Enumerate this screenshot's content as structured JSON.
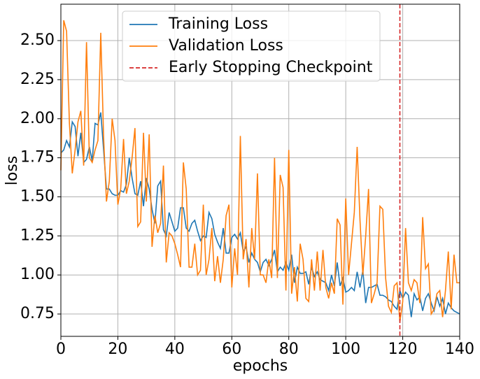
{
  "chart_data": {
    "type": "line",
    "xlabel": "epochs",
    "ylabel": "loss",
    "x": [
      0,
      1,
      2,
      3,
      4,
      5,
      6,
      7,
      8,
      9,
      10,
      11,
      12,
      13,
      14,
      15,
      16,
      17,
      18,
      19,
      20,
      21,
      22,
      23,
      24,
      25,
      26,
      27,
      28,
      29,
      30,
      31,
      32,
      33,
      34,
      35,
      36,
      37,
      38,
      39,
      40,
      41,
      42,
      43,
      44,
      45,
      46,
      47,
      48,
      49,
      50,
      51,
      52,
      53,
      54,
      55,
      56,
      57,
      58,
      59,
      60,
      61,
      62,
      63,
      64,
      65,
      66,
      67,
      68,
      69,
      70,
      71,
      72,
      73,
      74,
      75,
      76,
      77,
      78,
      79,
      80,
      81,
      82,
      83,
      84,
      85,
      86,
      87,
      88,
      89,
      90,
      91,
      92,
      93,
      94,
      95,
      96,
      97,
      98,
      99,
      100,
      101,
      102,
      103,
      104,
      105,
      106,
      107,
      108,
      109,
      110,
      111,
      112,
      113,
      114,
      115,
      116,
      117,
      118,
      119,
      120,
      121,
      122,
      123,
      124,
      125,
      126,
      127,
      128,
      129,
      130,
      131,
      132,
      133,
      134,
      135,
      136,
      137,
      138,
      139,
      140
    ],
    "series": [
      {
        "name": "Training Loss",
        "color": "#1f77b4",
        "values": [
          1.78,
          1.8,
          1.86,
          1.82,
          1.98,
          1.95,
          1.76,
          1.91,
          1.72,
          1.74,
          1.82,
          1.73,
          1.97,
          1.96,
          2.04,
          1.8,
          1.55,
          1.55,
          1.52,
          1.51,
          1.51,
          1.54,
          1.53,
          1.58,
          1.75,
          1.62,
          1.52,
          1.51,
          1.6,
          1.44,
          1.62,
          1.55,
          1.42,
          1.33,
          1.57,
          1.6,
          1.29,
          1.25,
          1.4,
          1.34,
          1.28,
          1.3,
          1.43,
          1.43,
          1.3,
          1.28,
          1.33,
          1.35,
          1.28,
          1.22,
          1.25,
          1.24,
          1.4,
          1.36,
          1.26,
          1.21,
          1.17,
          1.3,
          1.14,
          1.14,
          1.24,
          1.26,
          1.23,
          1.27,
          1.15,
          1.18,
          1.08,
          1.14,
          1.1,
          1.08,
          1.02,
          1.08,
          1.1,
          1.06,
          1.1,
          1.16,
          1.02,
          1.05,
          1.03,
          1.08,
          1.03,
          1.13,
          0.95,
          1.05,
          1.01,
          1.01,
          1.02,
          0.94,
          1.05,
          0.99,
          1.02,
          0.97,
          0.96,
          0.95,
          0.9,
          1.0,
          0.93,
          1.08,
          0.93,
          0.98,
          0.89,
          0.9,
          0.92,
          0.9,
          1.02,
          0.92,
          1.03,
          0.82,
          0.92,
          0.92,
          0.93,
          0.94,
          0.87,
          0.87,
          0.86,
          0.84,
          0.83,
          0.8,
          0.78,
          0.9,
          0.85,
          0.89,
          0.87,
          0.73,
          0.88,
          0.84,
          0.86,
          0.77,
          0.85,
          0.88,
          0.82,
          0.77,
          0.86,
          0.8,
          0.85,
          0.75,
          0.82,
          0.79,
          0.77,
          0.76,
          0.75
        ]
      },
      {
        "name": "Validation Loss",
        "color": "#ff7f0e",
        "values": [
          1.67,
          2.63,
          2.56,
          1.97,
          1.65,
          1.8,
          1.98,
          2.05,
          1.7,
          2.49,
          1.75,
          1.72,
          1.8,
          1.86,
          2.55,
          1.88,
          1.47,
          1.6,
          2.0,
          1.86,
          1.45,
          1.55,
          1.87,
          1.52,
          1.6,
          1.75,
          1.94,
          1.31,
          1.34,
          1.91,
          1.47,
          1.9,
          1.18,
          1.38,
          1.27,
          1.33,
          1.7,
          1.08,
          1.27,
          1.25,
          1.2,
          1.13,
          1.05,
          1.72,
          1.55,
          1.05,
          1.05,
          1.2,
          1.0,
          1.03,
          1.45,
          1.0,
          1.1,
          1.3,
          0.96,
          1.12,
          0.95,
          1.1,
          1.38,
          1.45,
          0.92,
          1.17,
          1.0,
          1.89,
          1.1,
          1.23,
          0.92,
          1.3,
          1.1,
          1.65,
          1.0,
          1.0,
          0.95,
          1.1,
          0.98,
          1.75,
          0.98,
          1.64,
          1.56,
          0.9,
          1.8,
          0.88,
          1.05,
          0.83,
          1.2,
          1.1,
          0.85,
          0.83,
          1.1,
          0.9,
          1.15,
          0.9,
          1.16,
          0.92,
          0.85,
          0.95,
          0.88,
          1.36,
          1.32,
          0.81,
          1.49,
          1.0,
          1.2,
          1.4,
          1.82,
          1.35,
          1.0,
          1.25,
          1.55,
          0.82,
          0.88,
          0.95,
          1.44,
          1.42,
          0.98,
          0.8,
          0.76,
          0.93,
          0.95,
          0.7,
          0.83,
          1.3,
          0.95,
          0.9,
          0.97,
          0.95,
          0.82,
          1.37,
          1.04,
          1.07,
          0.75,
          0.78,
          0.88,
          0.9,
          0.73,
          0.9,
          1.15,
          0.78,
          1.13,
          0.95,
          0.95
        ]
      }
    ],
    "vlines": [
      {
        "name": "Early Stopping Checkpoint",
        "x": 119,
        "color": "#d62728"
      }
    ],
    "xlim": [
      0,
      140
    ],
    "xticks": [
      0,
      20,
      40,
      60,
      80,
      100,
      120,
      140
    ],
    "ylim": [
      0.607,
      2.733
    ],
    "yticks": [
      0.75,
      {
        "value": 1.0,
        "label": "1.00"
      },
      1.25,
      {
        "value": 1.5,
        "label": "1.50"
      },
      1.75,
      {
        "value": 2.0,
        "label": "2.00"
      },
      2.25,
      {
        "value": 2.5,
        "label": "2.50"
      }
    ],
    "grid": true,
    "legend": "upper center"
  }
}
